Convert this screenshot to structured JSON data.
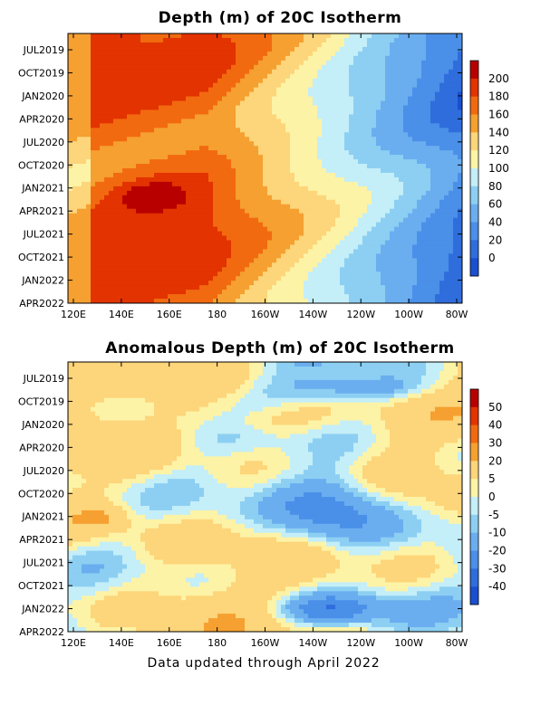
{
  "chart_data": [
    {
      "type": "heatmap",
      "title": "Depth (m) of 20C Isotherm",
      "xlabel": "",
      "ylabel": "",
      "x_ticks": [
        "120E",
        "140E",
        "160E",
        "180",
        "160W",
        "140W",
        "120W",
        "100W",
        "80W"
      ],
      "y_ticks": [
        "JUL2019",
        "OCT2019",
        "JAN2020",
        "APR2020",
        "JUL2020",
        "OCT2020",
        "JAN2021",
        "APR2021",
        "JUL2021",
        "OCT2021",
        "JAN2022",
        "APR2022"
      ],
      "colorbar": {
        "levels": [
          "200",
          "180",
          "160",
          "140",
          "120",
          "100",
          "80",
          "60",
          "40",
          "20",
          "0"
        ],
        "colors": [
          "#b80000",
          "#e23300",
          "#f26a10",
          "#f5a030",
          "#fdd57a",
          "#fdf3a6",
          "#c4eef8",
          "#8ccff2",
          "#6aaef0",
          "#4a8fe8",
          "#2f6ddc",
          "#1a4fd0"
        ]
      },
      "grid": false
    },
    {
      "type": "heatmap",
      "title": "Anomalous Depth (m) of 20C Isotherm",
      "xlabel": "",
      "ylabel": "",
      "x_ticks": [
        "120E",
        "140E",
        "160E",
        "180",
        "160W",
        "140W",
        "120W",
        "100W",
        "80W"
      ],
      "y_ticks": [
        "JUL2019",
        "OCT2019",
        "JAN2020",
        "APR2020",
        "JUL2020",
        "OCT2020",
        "JAN2021",
        "APR2021",
        "JUL2021",
        "OCT2021",
        "JAN2022",
        "APR2022"
      ],
      "colorbar": {
        "levels": [
          "50",
          "40",
          "30",
          "20",
          "5",
          "0",
          "-5",
          "-10",
          "-20",
          "-30",
          "-40"
        ],
        "colors": [
          "#b80000",
          "#e23300",
          "#f26a10",
          "#f5a030",
          "#fdd57a",
          "#fdf3a6",
          "#c4eef8",
          "#8ccff2",
          "#6aaef0",
          "#4a8fe8",
          "#2f6ddc",
          "#1a4fd0"
        ]
      },
      "grid": false
    }
  ],
  "footer": "Data updated through April 2022"
}
